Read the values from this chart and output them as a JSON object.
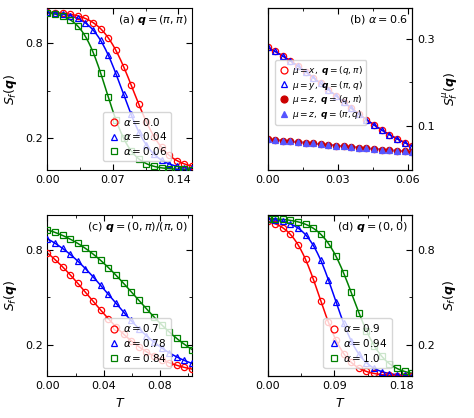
{
  "panel_a": {
    "title": "(a) $\\boldsymbol{q} = (\\pi, \\pi)$",
    "ylabel": "$S_f(\\boldsymbol{q})$",
    "xlim": [
      0.0,
      0.155
    ],
    "ylim": [
      0.0,
      1.02
    ],
    "xticks": [
      0.0,
      0.07,
      0.14
    ],
    "yticks": [
      0.2,
      0.8
    ],
    "legend_loc": "center right",
    "series": [
      {
        "label": "$\\alpha = 0.0$",
        "color": "red",
        "marker": "o",
        "filled": false,
        "T_c": 0.092,
        "steep": 60
      },
      {
        "label": "$\\alpha = 0.04$",
        "color": "blue",
        "marker": "^",
        "filled": false,
        "T_c": 0.08,
        "steep": 65
      },
      {
        "label": "$\\alpha = 0.06$",
        "color": "green",
        "marker": "s",
        "filled": false,
        "T_c": 0.063,
        "steep": 75
      }
    ]
  },
  "panel_b": {
    "title": "(b) $\\alpha = 0.6$",
    "ylabel": "$S_f^{\\mu}(\\boldsymbol{q})$",
    "xlim": [
      0.0,
      0.062
    ],
    "ylim": [
      0.0,
      0.37
    ],
    "xticks": [
      0.0,
      0.03,
      0.06
    ],
    "yticks": [
      0.1,
      0.3
    ],
    "legend_loc": "center right",
    "series": [
      {
        "label": "$\\mu = x,\\; \\boldsymbol{q} = (q,\\pi)$",
        "color": "red",
        "marker": "o",
        "filled": false,
        "T_c": 0.028,
        "steep": 50,
        "ymax": 0.35,
        "ymin": 0.0
      },
      {
        "label": "$\\mu = y,\\; \\boldsymbol{q} = (\\pi,q)$",
        "color": "blue",
        "marker": "^",
        "filled": false,
        "T_c": 0.028,
        "steep": 50,
        "ymax": 0.35,
        "ymin": 0.0
      },
      {
        "label": "$\\mu = z,\\; \\boldsymbol{q} = (q,\\pi)$",
        "color": "#cc0000",
        "marker": "o",
        "filled": true,
        "T_c": 0.02,
        "steep": 25,
        "ymax": 0.08,
        "ymin": 0.02
      },
      {
        "label": "$\\mu = z,\\; \\boldsymbol{q} = (\\pi,q)$",
        "color": "#5555ff",
        "marker": "^",
        "filled": true,
        "T_c": 0.02,
        "steep": 25,
        "ymax": 0.08,
        "ymin": 0.02
      }
    ]
  },
  "panel_c": {
    "title": "(c) $\\boldsymbol{q} = (0,\\pi)/(\\pi,0)$",
    "ylabel": "$S_f(\\boldsymbol{q})$",
    "xlabel": "$T$",
    "xlim": [
      0.0,
      0.103
    ],
    "ylim": [
      0.0,
      1.02
    ],
    "xticks": [
      0.0,
      0.04,
      0.08
    ],
    "yticks": [
      0.2,
      0.8
    ],
    "legend_loc": "center right",
    "series": [
      {
        "label": "$\\alpha = 0.7$",
        "color": "red",
        "marker": "o",
        "filled": false,
        "T_c": 0.03,
        "steep": 42
      },
      {
        "label": "$\\alpha = 0.78$",
        "color": "blue",
        "marker": "^",
        "filled": false,
        "T_c": 0.045,
        "steep": 42
      },
      {
        "label": "$\\alpha = 0.84$",
        "color": "green",
        "marker": "s",
        "filled": false,
        "T_c": 0.063,
        "steep": 40
      }
    ]
  },
  "panel_d": {
    "title": "(d) $\\boldsymbol{q} = (0,0)$",
    "ylabel": "$S_f(\\boldsymbol{q})$",
    "xlabel": "$T$",
    "xlim": [
      0.0,
      0.195
    ],
    "ylim": [
      0.0,
      1.02
    ],
    "xticks": [
      0.0,
      0.09,
      0.18
    ],
    "yticks": [
      0.2,
      0.8
    ],
    "legend_loc": "center right",
    "series": [
      {
        "label": "$\\alpha = 0.9$",
        "color": "red",
        "marker": "o",
        "filled": false,
        "T_c": 0.07,
        "steep": 55
      },
      {
        "label": "$\\alpha = 0.94$",
        "color": "blue",
        "marker": "^",
        "filled": false,
        "T_c": 0.09,
        "steep": 55
      },
      {
        "label": "$\\alpha = 1.0$",
        "color": "green",
        "marker": "s",
        "filled": false,
        "T_c": 0.115,
        "steep": 50
      }
    ]
  }
}
